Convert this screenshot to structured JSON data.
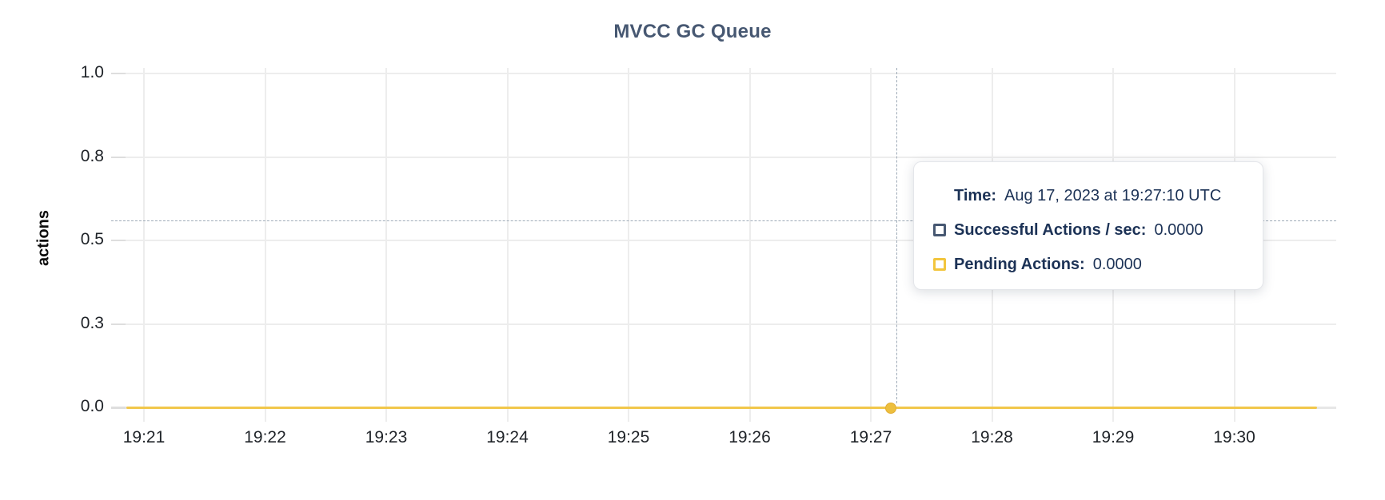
{
  "chart": {
    "title": "MVCC GC Queue",
    "title_color": "#475872",
    "y_axis_label": "actions",
    "y_tick_labels": [
      "1.0",
      "0.8",
      "0.5",
      "0.3",
      "0.0"
    ],
    "x_tick_labels": [
      "19:21",
      "19:22",
      "19:23",
      "19:24",
      "19:25",
      "19:26",
      "19:27",
      "19:28",
      "19:29",
      "19:30"
    ],
    "series_line_color": "#f1c74b",
    "crosshair_color": "#9fabb8",
    "gridline_color": "#ededed"
  },
  "tooltip": {
    "text_color": "#1c3256",
    "time_label": "Time:",
    "time_value": "Aug 17, 2023 at 19:27:10 UTC",
    "series": [
      {
        "label": "Successful Actions / sec:",
        "value": "0.0000",
        "swatch_color": "#475872"
      },
      {
        "label": "Pending Actions:",
        "value": "0.0000",
        "swatch_color": "#f2c53d"
      }
    ]
  },
  "chart_data": {
    "type": "line",
    "title": "MVCC GC Queue",
    "xlabel": "",
    "ylabel": "actions",
    "ylim": [
      0.0,
      1.0
    ],
    "y_ticks_shown": [
      1.0,
      0.8,
      0.5,
      0.3,
      0.0
    ],
    "grid": true,
    "legend_position": "tooltip-only",
    "x": [
      "19:21",
      "19:22",
      "19:23",
      "19:24",
      "19:25",
      "19:26",
      "19:27",
      "19:28",
      "19:29",
      "19:30"
    ],
    "series": [
      {
        "name": "Successful Actions / sec",
        "color": "#475872",
        "values": [
          0,
          0,
          0,
          0,
          0,
          0,
          0,
          0,
          0,
          0
        ]
      },
      {
        "name": "Pending Actions",
        "color": "#f2c53d",
        "values": [
          0,
          0,
          0,
          0,
          0,
          0,
          0,
          0,
          0,
          0
        ]
      }
    ],
    "hovered_point": {
      "time": "Aug 17, 2023 at 19:27:10 UTC",
      "successful_actions_per_sec": 0.0,
      "pending_actions": 0.0
    }
  }
}
